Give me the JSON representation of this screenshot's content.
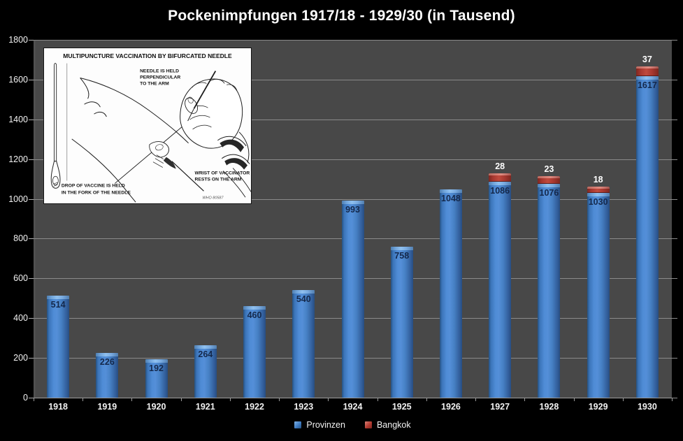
{
  "title": "Pockenimpfungen 1917/18 - 1929/30 (in Tausend)",
  "colors": {
    "background": "#000000",
    "plot_bg": "#484848",
    "gridline": "#8A8A8A",
    "axis_text": "#F2F2F2",
    "provinzen": "#3E7BC2",
    "bangkok": "#B23A30",
    "bar_label_dark": "#14284B",
    "bar_label_light": "#FFFFFF"
  },
  "inset": {
    "title": "MULTIPUNCTURE VACCINATION BY BIFURCATED NEEDLE",
    "note_needle": [
      "NEEDLE IS HELD",
      "PERPENDICULAR",
      "TO THE ARM"
    ],
    "note_drop": [
      "DROP OF VACCINE IS HELD",
      "IN THE FORK OF THE NEEDLE"
    ],
    "note_wrist": [
      "WRIST OF VACCINATOR",
      "RESTS ON THE ARM"
    ],
    "credit": "WHO 80587"
  },
  "chart_data": {
    "type": "bar",
    "stacked": true,
    "title": "Pockenimpfungen 1917/18 - 1929/30 (in Tausend)",
    "categories": [
      "1918",
      "1919",
      "1920",
      "1921",
      "1922",
      "1923",
      "1924",
      "1925",
      "1926",
      "1927",
      "1928",
      "1929",
      "1930"
    ],
    "series": [
      {
        "name": "Provinzen",
        "color": "#3E7BC2",
        "values": [
          514,
          226,
          192,
          264,
          460,
          540,
          993,
          758,
          1048,
          1086,
          1076,
          1030,
          1617
        ]
      },
      {
        "name": "Bangkok",
        "color": "#B23A30",
        "values": [
          null,
          null,
          null,
          null,
          null,
          null,
          null,
          null,
          null,
          28,
          23,
          18,
          37
        ]
      }
    ],
    "xlabel": "",
    "ylabel": "",
    "ylim": [
      0,
      1800
    ],
    "ytick_step": 200,
    "grid": true,
    "legend_position": "bottom"
  }
}
